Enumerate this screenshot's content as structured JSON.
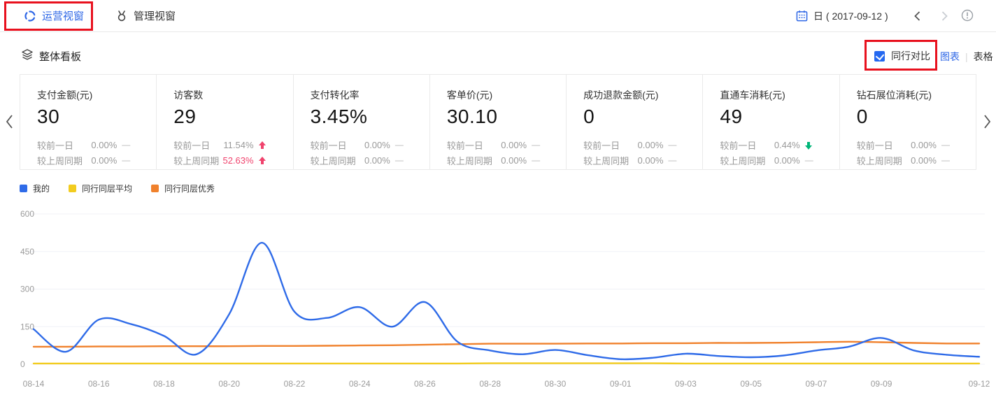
{
  "header": {
    "tabs": [
      {
        "label": "运营视窗",
        "active": true
      },
      {
        "label": "管理视窗",
        "active": false
      }
    ],
    "date_label": "日 ( 2017-09-12 )"
  },
  "board": {
    "title": "整体看板",
    "compare_label": "同行对比",
    "compare_checked": true,
    "view_chart_label": "图表",
    "view_divider": "|",
    "view_table_label": "表格"
  },
  "cards": [
    {
      "title": "支付金额(元)",
      "value": "30",
      "rows": [
        {
          "label": "较前一日",
          "value": "0.00%",
          "trend": "flat"
        },
        {
          "label": "较上周同期",
          "value": "0.00%",
          "trend": "flat"
        }
      ]
    },
    {
      "title": "访客数",
      "value": "29",
      "rows": [
        {
          "label": "较前一日",
          "value": "11.54%",
          "trend": "up"
        },
        {
          "label": "较上周同期",
          "value": "52.63%",
          "trend": "up",
          "emphasis": true
        }
      ]
    },
    {
      "title": "支付转化率",
      "value": "3.45%",
      "rows": [
        {
          "label": "较前一日",
          "value": "0.00%",
          "trend": "flat"
        },
        {
          "label": "较上周同期",
          "value": "0.00%",
          "trend": "flat"
        }
      ]
    },
    {
      "title": "客单价(元)",
      "value": "30.10",
      "rows": [
        {
          "label": "较前一日",
          "value": "0.00%",
          "trend": "flat"
        },
        {
          "label": "较上周同期",
          "value": "0.00%",
          "trend": "flat"
        }
      ]
    },
    {
      "title": "成功退款金额(元)",
      "value": "0",
      "rows": [
        {
          "label": "较前一日",
          "value": "0.00%",
          "trend": "flat"
        },
        {
          "label": "较上周同期",
          "value": "0.00%",
          "trend": "flat"
        }
      ]
    },
    {
      "title": "直通车消耗(元)",
      "value": "49",
      "rows": [
        {
          "label": "较前一日",
          "value": "0.44%",
          "trend": "down"
        },
        {
          "label": "较上周同期",
          "value": "0.00%",
          "trend": "flat"
        }
      ]
    },
    {
      "title": "钻石展位消耗(元)",
      "value": "0",
      "rows": [
        {
          "label": "较前一日",
          "value": "0.00%",
          "trend": "flat"
        },
        {
          "label": "较上周同期",
          "value": "0.00%",
          "trend": "flat"
        }
      ]
    }
  ],
  "chart_data": {
    "type": "line",
    "x": [
      "08-14",
      "08-15",
      "08-16",
      "08-17",
      "08-18",
      "08-19",
      "08-20",
      "08-21",
      "08-22",
      "08-23",
      "08-24",
      "08-25",
      "08-26",
      "08-27",
      "08-28",
      "08-29",
      "08-30",
      "08-31",
      "09-01",
      "09-02",
      "09-03",
      "09-04",
      "09-05",
      "09-06",
      "09-07",
      "09-08",
      "09-09",
      "09-10",
      "09-11",
      "09-12"
    ],
    "x_labels_shown": [
      "08-14",
      "08-16",
      "08-18",
      "08-20",
      "08-22",
      "08-24",
      "08-26",
      "08-28",
      "08-30",
      "09-01",
      "09-03",
      "09-05",
      "09-07",
      "09-09",
      "09-12"
    ],
    "series": [
      {
        "name": "我的",
        "color": "#2f6be8",
        "values": [
          140,
          50,
          178,
          160,
          113,
          40,
          200,
          485,
          210,
          185,
          228,
          150,
          248,
          90,
          55,
          40,
          57,
          36,
          20,
          26,
          42,
          33,
          28,
          35,
          55,
          70,
          105,
          55,
          38,
          30
        ]
      },
      {
        "name": "同行同层平均",
        "color": "#f2cc1f",
        "values": [
          3,
          3,
          3,
          3,
          3,
          3,
          3,
          3,
          3,
          3,
          3,
          3,
          3,
          3,
          4,
          4,
          4,
          4,
          4,
          4,
          3,
          3,
          3,
          3,
          3,
          3,
          3,
          3,
          3,
          3
        ]
      },
      {
        "name": "同行同层优秀",
        "color": "#f0812c",
        "values": [
          70,
          70,
          71,
          71,
          72,
          72,
          72,
          73,
          73,
          74,
          75,
          76,
          78,
          80,
          82,
          82,
          82,
          83,
          83,
          84,
          84,
          85,
          85,
          86,
          88,
          90,
          88,
          85,
          83,
          83
        ]
      }
    ],
    "ylim": [
      0,
      600
    ],
    "yticks": [
      0,
      150,
      300,
      450,
      600
    ],
    "grid": true,
    "legend_position": "top-left",
    "smooth": true
  },
  "colors": {
    "accent_blue": "#2d66e6",
    "annotation_red": "#e8111e",
    "trend_up_rose": "#f0436d",
    "trend_down_green": "#00b578"
  },
  "icons": {
    "tab1": "sync-circle-icon",
    "tab2": "ox-head-icon",
    "board": "layers-icon",
    "calendar": "calendar-icon",
    "prev": "chevron-left-icon",
    "next": "chevron-right-icon",
    "info": "info-circle-icon"
  }
}
